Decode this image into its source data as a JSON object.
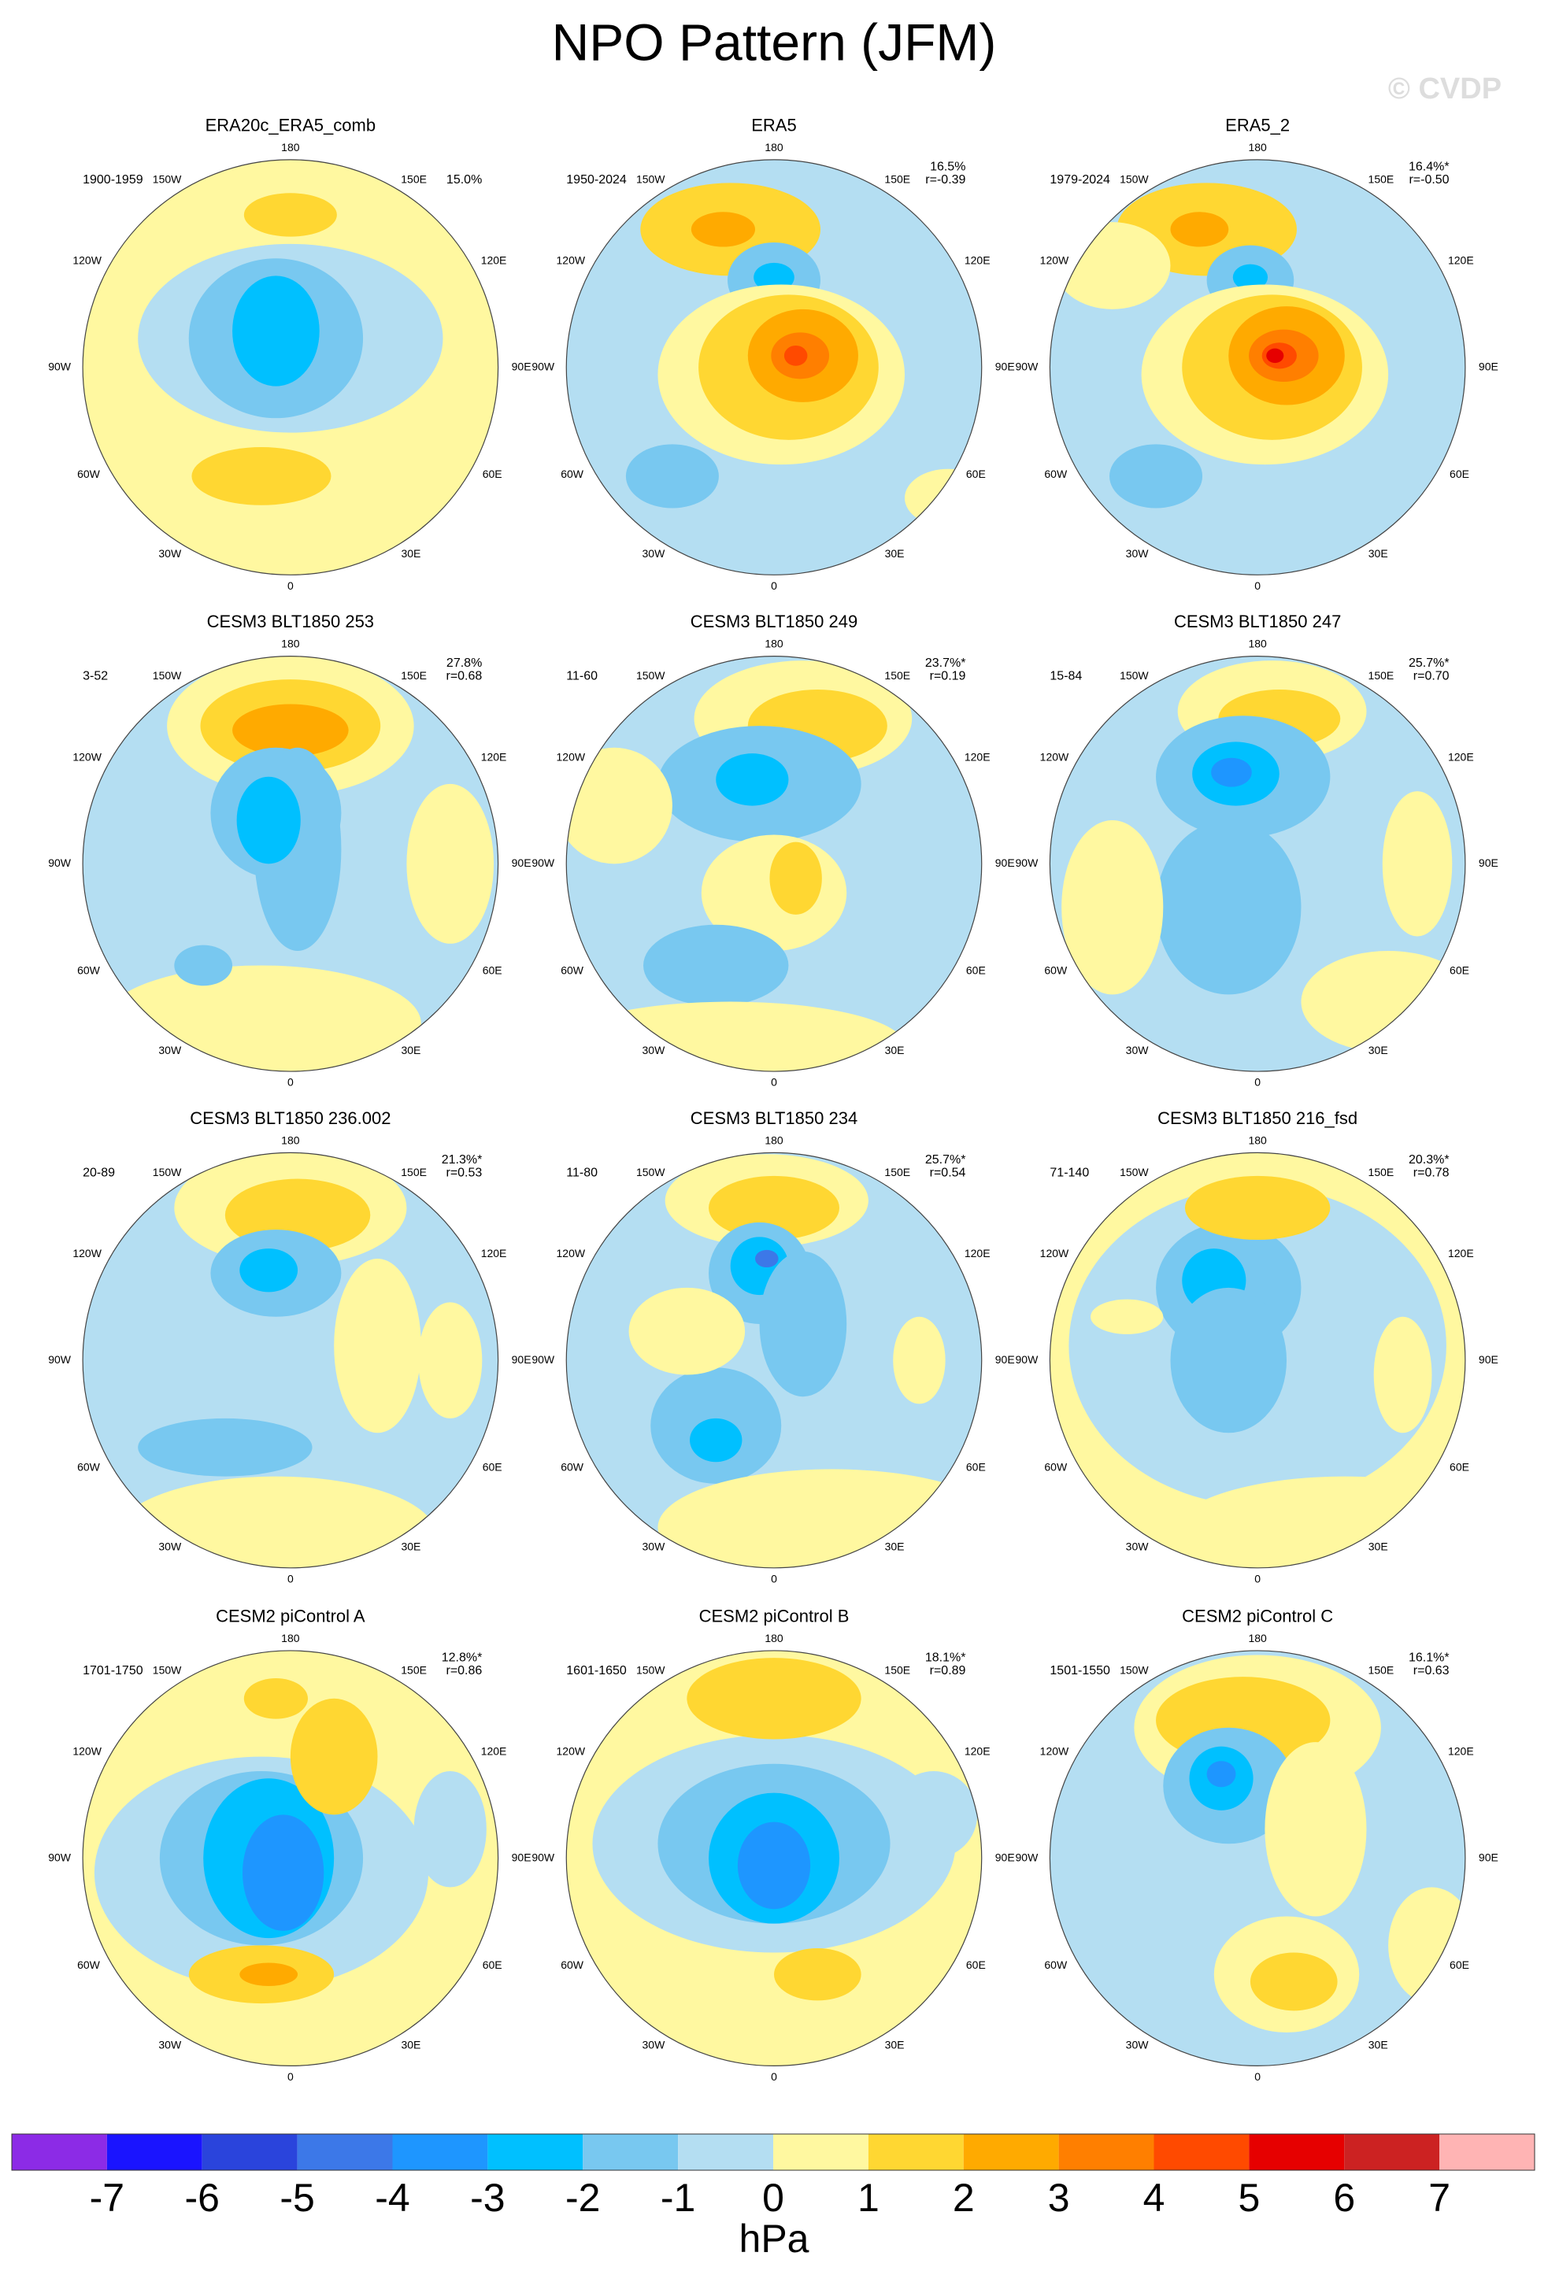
{
  "header": {
    "title": "NPO Pattern (JFM)",
    "watermark": "© CVDP"
  },
  "lon_labels": [
    "180",
    "150W",
    "150E",
    "120W",
    "120E",
    "90W",
    "90E",
    "60W",
    "60E",
    "30W",
    "30E",
    "0"
  ],
  "panels": [
    {
      "title": "ERA20c_ERA5_comb",
      "period": "1900-1959",
      "pct": "15.0%"
    },
    {
      "title": "ERA5",
      "period": "1950-2024",
      "pct": "16.5%",
      "r": "r=-0.39"
    },
    {
      "title": "ERA5_2",
      "period": "1979-2024",
      "pct": "16.4%*",
      "r": "r=-0.50"
    },
    {
      "title": "CESM3 BLT1850 253",
      "period": "3-52",
      "pct": "27.8%",
      "r": "r=0.68"
    },
    {
      "title": "CESM3 BLT1850 249",
      "period": "11-60",
      "pct": "23.7%*",
      "r": "r=0.19"
    },
    {
      "title": "CESM3 BLT1850 247",
      "period": "15-84",
      "pct": "25.7%*",
      "r": "r=0.70"
    },
    {
      "title": "CESM3 BLT1850 236.002",
      "period": "20-89",
      "pct": "21.3%*",
      "r": "r=0.53"
    },
    {
      "title": "CESM3 BLT1850 234",
      "period": "11-80",
      "pct": "25.7%*",
      "r": "r=0.54"
    },
    {
      "title": "CESM3 BLT1850 216_fsd",
      "period": "71-140",
      "pct": "20.3%*",
      "r": "r=0.78"
    },
    {
      "title": "CESM2 piControl A",
      "period": "1701-1750",
      "pct": "12.8%*",
      "r": "r=0.86"
    },
    {
      "title": "CESM2 piControl B",
      "period": "1601-1650",
      "pct": "18.1%*",
      "r": "r=0.89"
    },
    {
      "title": "CESM2 piControl C",
      "period": "1501-1550",
      "pct": "16.1%*",
      "r": "r=0.63"
    }
  ],
  "colorbar": {
    "levels": [
      -7,
      -6,
      -5,
      -4,
      -3,
      -2,
      -1,
      0,
      1,
      2,
      3,
      4,
      5,
      6,
      7
    ],
    "colors": [
      "#8c2be6",
      "#1a14ff",
      "#2a44dc",
      "#3c78e8",
      "#1e96ff",
      "#00c0ff",
      "#78c8f0",
      "#b4def2",
      "#fff8a0",
      "#ffd732",
      "#ffaa00",
      "#ff7f00",
      "#ff4a00",
      "#e60000",
      "#cc2222",
      "#ffb4b4"
    ],
    "unit": "hPa"
  }
}
